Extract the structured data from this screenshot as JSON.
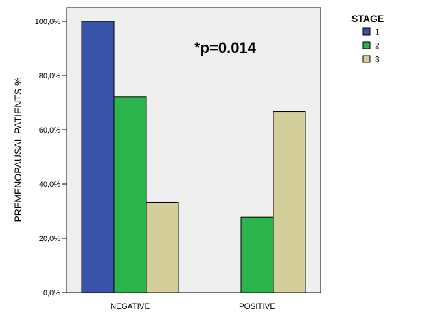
{
  "chart_data": {
    "type": "bar",
    "categories": [
      "NEGATIVE",
      "POSITIVE"
    ],
    "series": [
      {
        "name": "1",
        "values": [
          100.0,
          0.0
        ],
        "color": "#3953a8"
      },
      {
        "name": "2",
        "values": [
          72.2,
          27.8
        ],
        "color": "#2bb54c"
      },
      {
        "name": "3",
        "values": [
          33.3,
          66.7
        ],
        "color": "#d4ce9b"
      }
    ],
    "xlabel": "",
    "ylabel": "PREMENOPAUSAL PATIENTS %",
    "ylim": [
      0,
      100
    ],
    "yticks": [
      "0,0%",
      "20,0%",
      "40,0%",
      "60,0%",
      "80,0%",
      "100,0%"
    ],
    "legend_title": "STAGE",
    "legend_position": "top-right",
    "annotation": "*p=0.014",
    "plot_background": "#efefef",
    "grid": false
  }
}
